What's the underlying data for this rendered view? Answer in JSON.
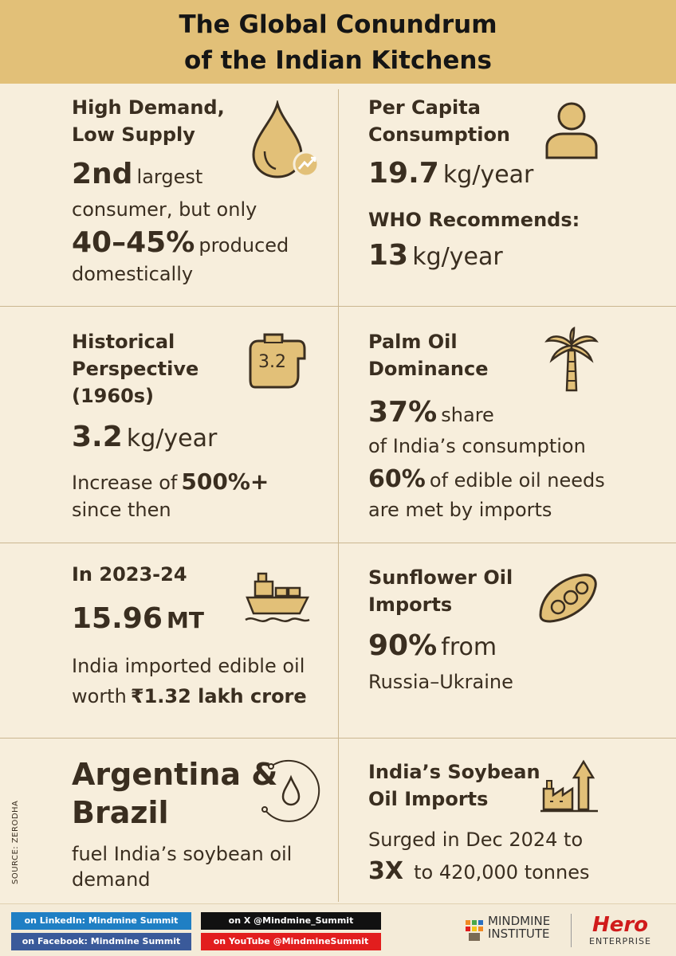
{
  "title": {
    "line1": "The Global Conundrum",
    "line2": "of the Indian Kitchens"
  },
  "panels": {
    "demand": {
      "heading1": "High Demand,",
      "heading2": "Low Supply",
      "stat1": "2nd",
      "stat1_text": "largest",
      "line2": "consumer, but only",
      "stat2": "40–45%",
      "stat2_text": "produced",
      "line4": "domestically",
      "icon": "oil-drop-icon"
    },
    "per_capita": {
      "heading1": "Per Capita",
      "heading2": "Consumption",
      "value": "19.7",
      "value_unit": "kg/year",
      "who_label": "WHO Recommends:",
      "who_value": "13",
      "who_unit": "kg/year",
      "icon": "person-icon"
    },
    "historical": {
      "heading1": "Historical",
      "heading2": "Perspective",
      "heading3": "(1960s)",
      "value": "3.2",
      "value_unit": "kg/year",
      "increase_prefix": "Increase of",
      "increase_value": "500%+",
      "increase_suffix": "since then",
      "icon_label": "3.2",
      "icon": "calendar-icon"
    },
    "palm": {
      "heading1": "Palm Oil",
      "heading2": "Dominance",
      "share": "37%",
      "share_text": "share",
      "share_line2": "of India’s consumption",
      "imports": "60%",
      "imports_text": "of edible oil needs",
      "imports_line2": "are met by imports",
      "icon": "palm-tree-icon"
    },
    "imports_2324": {
      "heading": "In 2023-24",
      "value": "15.96",
      "value_unit": "MT",
      "line1": "India imported edible oil",
      "line2_prefix": "worth",
      "line2_value": "₹1.32 lakh crore",
      "icon": "ship-icon"
    },
    "sunflower": {
      "heading1": "Sunflower Oil",
      "heading2": "Imports",
      "value": "90%",
      "value_text": "from",
      "line2": "Russia–Ukraine",
      "icon": "seed-pod-icon"
    },
    "argentina": {
      "heading1": "Argentina &",
      "heading2": "Brazil",
      "line1": "fuel India’s soybean oil",
      "line2": "demand",
      "icon": "oil-drop-circle-icon"
    },
    "soybean": {
      "heading1": "India’s Soybean",
      "heading2": "Oil Imports",
      "line1": "Surged in Dec 2024 to",
      "value": "3X",
      "value_text": "to 420,000 tonnes",
      "icon": "factory-growth-icon"
    }
  },
  "source": "SOURCE: ZERODHA",
  "footer": {
    "linkedin": "on LinkedIn: Mindmine Summit",
    "facebook": "on Facebook: Mindmine Summit",
    "x": "on X @Mindmine_Summit",
    "youtube": "on YouTube @MindmineSummit",
    "logo1_line1": "MINDMINE",
    "logo1_line2": "INSTITUTE",
    "logo2_line1": "Hero",
    "logo2_line2": "ENTERPRISE"
  },
  "colors": {
    "header_bg": "#e2c078",
    "page_bg": "#f7eedc",
    "icon_fill": "#e2c078",
    "icon_stroke": "#3a2e20",
    "linkedin": "#1f7fc4",
    "facebook": "#3a5a9a",
    "x": "#111111",
    "youtube": "#e21e1e",
    "hero_red": "#d01b1b"
  }
}
